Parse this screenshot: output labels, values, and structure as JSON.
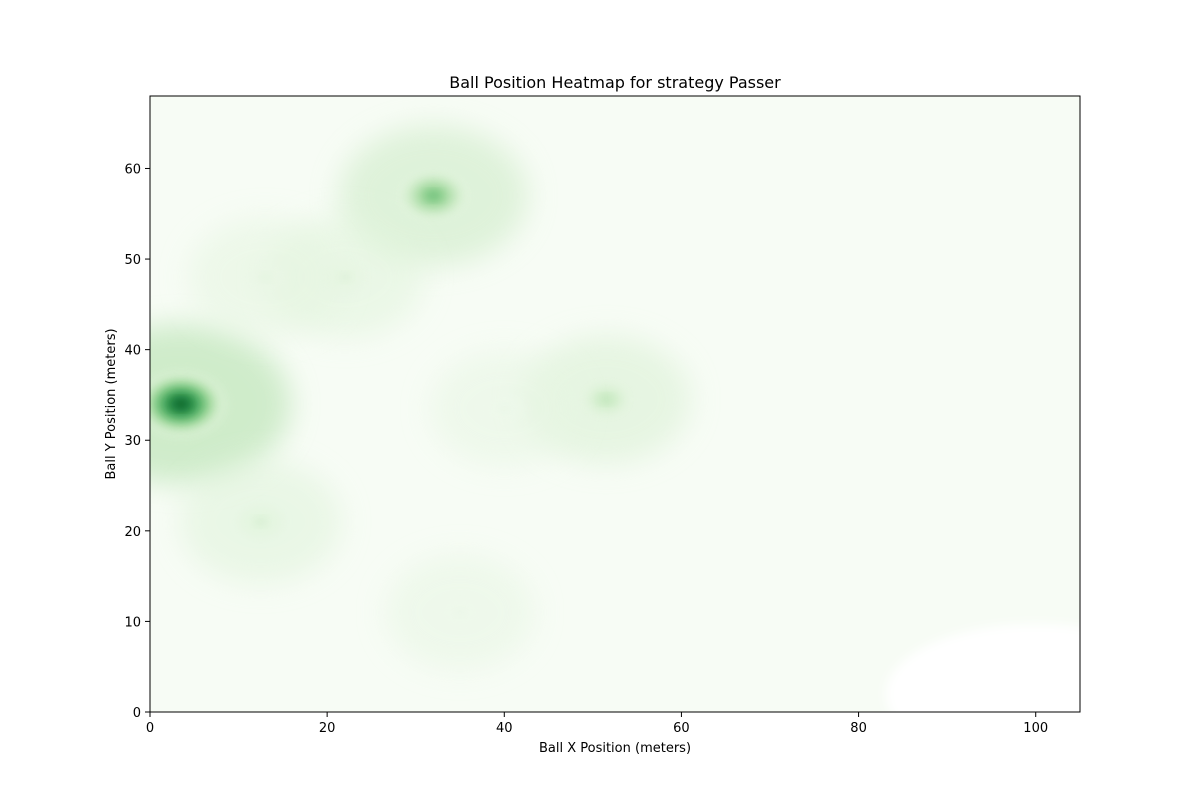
{
  "chart_data": {
    "type": "heatmap",
    "subtype": "kde-density",
    "title": "Ball Position Heatmap for strategy Passer",
    "xlabel": "Ball X Position (meters)",
    "ylabel": "Ball Y Position (meters)",
    "xlim": [
      0,
      105
    ],
    "ylim": [
      0,
      68
    ],
    "xticks": [
      0,
      20,
      40,
      60,
      80,
      100
    ],
    "yticks": [
      0,
      10,
      20,
      30,
      40,
      50,
      60
    ],
    "grid": false,
    "colormap": "Greens",
    "colors": {
      "low": "#f7fcf5",
      "high": "#00441b",
      "axis": "#000000"
    },
    "density_peaks": [
      {
        "x": 3.5,
        "y": 34,
        "intensity": 1.0
      },
      {
        "x": 32,
        "y": 57,
        "intensity": 0.62
      },
      {
        "x": 51.5,
        "y": 34.5,
        "intensity": 0.38
      },
      {
        "x": 12.5,
        "y": 21,
        "intensity": 0.28
      },
      {
        "x": 22,
        "y": 48,
        "intensity": 0.24
      },
      {
        "x": 13,
        "y": 48,
        "intensity": 0.18
      },
      {
        "x": 35,
        "y": 11,
        "intensity": 0.12
      },
      {
        "x": 40,
        "y": 33.5,
        "intensity": 0.12
      }
    ]
  }
}
